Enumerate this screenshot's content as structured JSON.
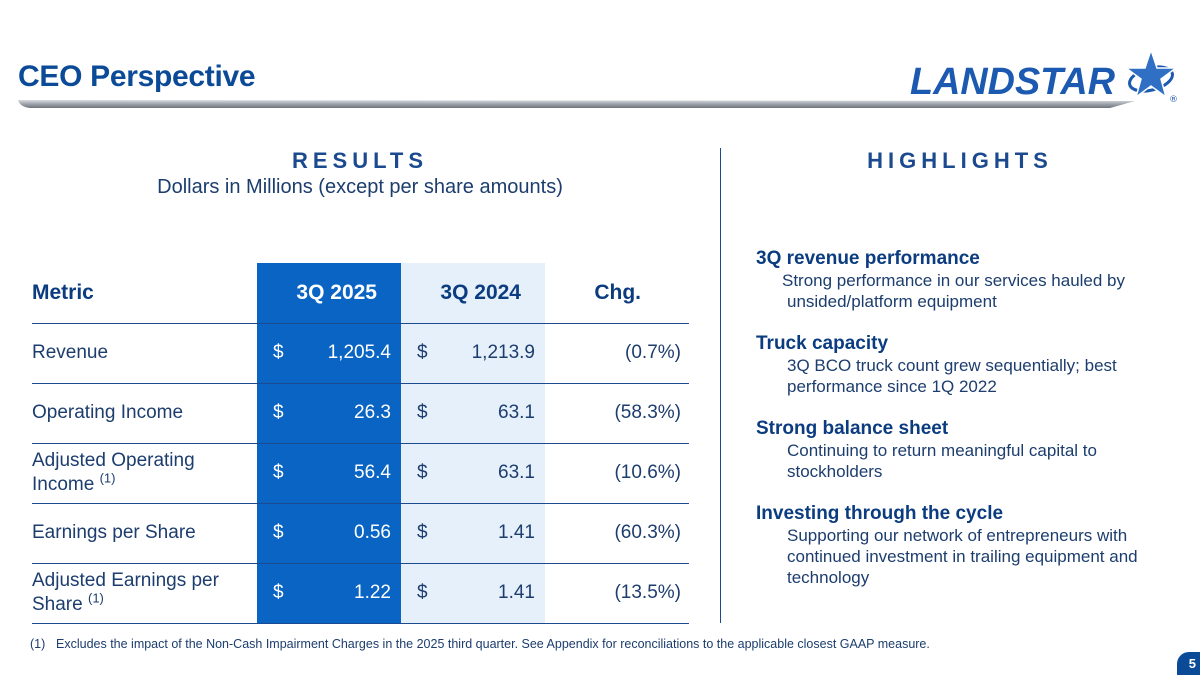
{
  "header": {
    "title": "CEO Perspective",
    "logo_text": "LANDSTAR",
    "logo_mark": "®"
  },
  "results": {
    "heading": "RESULTS",
    "subheading": "Dollars in Millions (except per share amounts)",
    "columns": [
      "Metric",
      "3Q 2025",
      "3Q 2024",
      "Chg."
    ],
    "rows": [
      {
        "metric": "Revenue",
        "fn": "",
        "cur": "$",
        "q2025": "1,205.4",
        "q2024": "1,213.9",
        "chg": "(0.7%)"
      },
      {
        "metric": "Operating Income",
        "fn": "",
        "cur": "$",
        "q2025": "26.3",
        "q2024": "63.1",
        "chg": "(58.3%)"
      },
      {
        "metric": "Adjusted Operating Income",
        "fn": "(1)",
        "cur": "$",
        "q2025": "56.4",
        "q2024": "63.1",
        "chg": "(10.6%)"
      },
      {
        "metric": "Earnings per Share",
        "fn": "",
        "cur": "$",
        "q2025": "0.56",
        "q2024": "1.41",
        "chg": "(60.3%)"
      },
      {
        "metric": "Adjusted Earnings per Share",
        "fn": "(1)",
        "cur": "$",
        "q2025": "1.22",
        "q2024": "1.41",
        "chg": "(13.5%)"
      }
    ]
  },
  "highlights": {
    "heading": "HIGHLIGHTS",
    "items": [
      {
        "title": "3Q revenue performance",
        "text": "Strong performance in our services hauled by unsided/platform equipment"
      },
      {
        "title": "Truck capacity",
        "text": "3Q BCO truck count grew sequentially; best performance since 1Q 2022"
      },
      {
        "title": "Strong balance sheet",
        "text": "Continuing to return meaningful capital to stockholders"
      },
      {
        "title": "Investing through the cycle",
        "text": "Supporting our network of entrepreneurs with continued investment in trailing equipment and technology"
      }
    ]
  },
  "footnote": {
    "number": "(1)",
    "text": "Excludes the impact of the Non-Cash Impairment Charges in the 2025 third quarter. See Appendix for reconciliations to the applicable closest GAAP measure."
  },
  "page": {
    "number": "5"
  },
  "colors": {
    "brand_blue": "#0b4a96",
    "table_2025_fill": "#0a64c4",
    "table_2024_fill": "#e5f0fb"
  }
}
